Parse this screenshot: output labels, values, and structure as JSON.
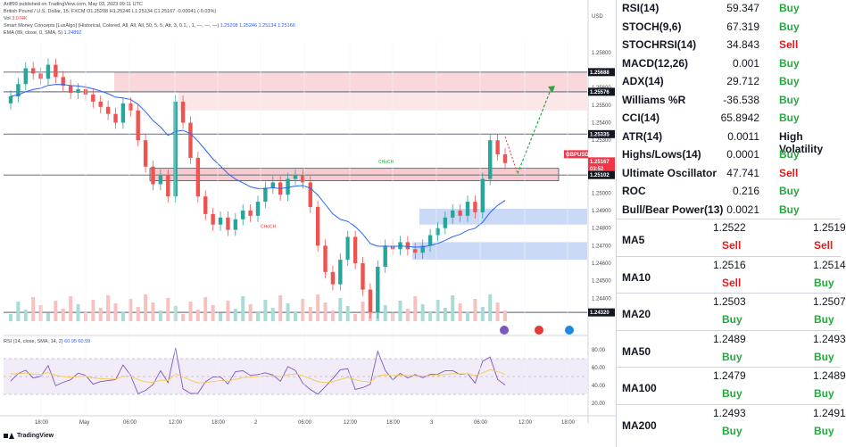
{
  "chart_header": {
    "publisher": "Ariff99 published on TradingView.com, May 03, 2023 09:11 UTC",
    "symbol_line": "British Pound / U.S. Dollar, 15, FXCM",
    "ohlc": "O1.25208 H1.25246 L1.25134 C1.25167 -0.00041 (-0.03%)",
    "vol_label": "Vol",
    "vol_value": "3.074K",
    "smc_line": "Smart Money Concepts [LuxAlgo] (Historical, Colored, All, All, All, 50, 5, 5, Atr, 3, 0.1, , 1, —, —, —)",
    "smc_values": "1.25208 1.25246 1.25134 1.25166",
    "ema_line": "EMA (89, close, 0, SMA, 5)",
    "ema_value": "1.24892",
    "rsi_line": "RSI (14, close, SMA, 14, 2)",
    "rsi_values": "60.95 60.59",
    "footer_brand": "TradingView"
  },
  "chart_data": {
    "type": "line",
    "title": "British Pound / U.S. Dollar, 15, FXCM",
    "currency": "USD",
    "y_ticks": [
      "1.25800",
      "1.25600",
      "1.25500",
      "1.25400",
      "1.25300",
      "1.25000",
      "1.24900",
      "1.24800",
      "1.24700",
      "1.24600",
      "1.24500",
      "1.24400"
    ],
    "price_labels": [
      {
        "text": "1.25688",
        "color": "#131722"
      },
      {
        "text": "1.25576",
        "color": "#131722"
      },
      {
        "text": "1.25335",
        "color": "#131722"
      },
      {
        "text": "GBPUSD",
        "color": "#f23645"
      },
      {
        "text": "1.25167",
        "color": "#f23645"
      },
      {
        "text": "03:52",
        "color": "#f23645"
      },
      {
        "text": "1.25102",
        "color": "#131722"
      },
      {
        "text": "1.24320",
        "color": "#131722"
      }
    ],
    "x_ticks": [
      "18:00",
      "May",
      "06:00",
      "12:00",
      "18:00",
      "2",
      "06:00",
      "12:00",
      "18:00",
      "3",
      "06:00",
      "12:00",
      "18:00"
    ],
    "rsi_ticks": [
      "80.00",
      "60.00",
      "40.00",
      "20.00"
    ],
    "annotations": [
      "CHoCH",
      "CHoCH"
    ],
    "close_series": [
      1.2555,
      1.2562,
      1.2571,
      1.2568,
      1.2565,
      1.2573,
      1.2566,
      1.2561,
      1.2557,
      1.2559,
      1.2556,
      1.2552,
      1.2549,
      1.2545,
      1.254,
      1.2551,
      1.2547,
      1.253,
      1.2515,
      1.2505,
      1.251,
      1.2498,
      1.2552,
      1.254,
      1.252,
      1.2498,
      1.2488,
      1.2482,
      1.2486,
      1.2479,
      1.2485,
      1.249,
      1.2487,
      1.2495,
      1.2503,
      1.2506,
      1.2499,
      1.2508,
      1.251,
      1.2506,
      1.2492,
      1.247,
      1.2455,
      1.2448,
      1.2462,
      1.2475,
      1.246,
      1.2445,
      1.2432,
      1.2458,
      1.247,
      1.2468,
      1.2472,
      1.2468,
      1.2466,
      1.247,
      1.2476,
      1.248,
      1.2486,
      1.249,
      1.2487,
      1.2495,
      1.2489,
      1.2508,
      1.253,
      1.2522,
      1.2517
    ]
  },
  "oscillators": [
    {
      "name": "RSI(14)",
      "value": "59.347",
      "action": "Buy",
      "status": "buy"
    },
    {
      "name": "STOCH(9,6)",
      "value": "67.319",
      "action": "Buy",
      "status": "buy"
    },
    {
      "name": "STOCHRSI(14)",
      "value": "34.843",
      "action": "Sell",
      "status": "sell"
    },
    {
      "name": "MACD(12,26)",
      "value": "0.001",
      "action": "Buy",
      "status": "buy"
    },
    {
      "name": "ADX(14)",
      "value": "29.712",
      "action": "Buy",
      "status": "buy"
    },
    {
      "name": "Williams %R",
      "value": "-36.538",
      "action": "Buy",
      "status": "buy"
    },
    {
      "name": "CCI(14)",
      "value": "65.8942",
      "action": "Buy",
      "status": "buy"
    },
    {
      "name": "ATR(14)",
      "value": "0.0011",
      "action": "High Volatility",
      "status": "neutral"
    },
    {
      "name": "Highs/Lows(14)",
      "value": "0.0001",
      "action": "Buy",
      "status": "buy"
    },
    {
      "name": "Ultimate Oscillator",
      "value": "47.741",
      "action": "Sell",
      "status": "sell"
    },
    {
      "name": "ROC",
      "value": "0.216",
      "action": "Buy",
      "status": "buy"
    },
    {
      "name": "Bull/Bear Power(13)",
      "value": "0.0021",
      "action": "Buy",
      "status": "buy"
    }
  ],
  "moving_averages": [
    {
      "name": "MA5",
      "simple": "1.2522",
      "simple_action": "Sell",
      "simple_status": "sell",
      "exp": "1.2519",
      "exp_action": "Sell",
      "exp_status": "sell"
    },
    {
      "name": "MA10",
      "simple": "1.2516",
      "simple_action": "Sell",
      "simple_status": "sell",
      "exp": "1.2514",
      "exp_action": "Buy",
      "exp_status": "buy"
    },
    {
      "name": "MA20",
      "simple": "1.2503",
      "simple_action": "Buy",
      "simple_status": "buy",
      "exp": "1.2507",
      "exp_action": "Buy",
      "exp_status": "buy"
    },
    {
      "name": "MA50",
      "simple": "1.2489",
      "simple_action": "Buy",
      "simple_status": "buy",
      "exp": "1.2493",
      "exp_action": "Buy",
      "exp_status": "buy"
    },
    {
      "name": "MA100",
      "simple": "1.2479",
      "simple_action": "Buy",
      "simple_status": "buy",
      "exp": "1.2489",
      "exp_action": "Buy",
      "exp_status": "buy"
    },
    {
      "name": "MA200",
      "simple": "1.2493",
      "simple_action": "Buy",
      "simple_status": "buy",
      "exp": "1.2491",
      "exp_action": "Buy",
      "exp_status": "buy"
    }
  ],
  "colors": {
    "up": "#26a69a",
    "down": "#ef5350",
    "ema": "#2962ff",
    "buy": "#22ab3c",
    "sell": "#e11d1d"
  }
}
